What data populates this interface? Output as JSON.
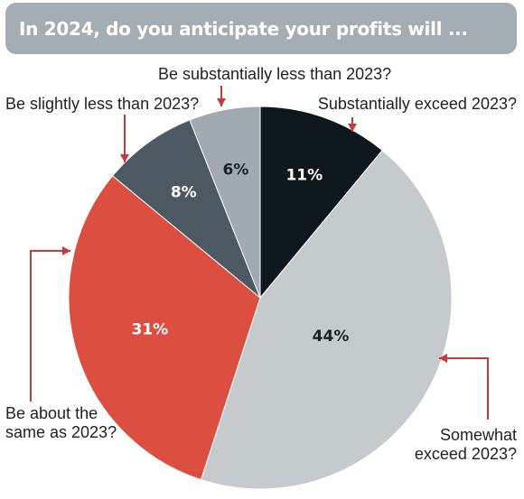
{
  "title": "In 2024, do you anticipate your profits will ...",
  "chart_data": {
    "type": "pie",
    "title": "In 2024, do you anticipate your profits will ...",
    "slices": [
      {
        "label": "Substantially exceed 2023?",
        "label_lines": [
          "Substantially exceed 2023?"
        ],
        "value": 11,
        "display": "11%",
        "color": "#0e171c",
        "text_color": "#ffffff"
      },
      {
        "label": "Somewhat exceed 2023?",
        "label_lines": [
          "Somewhat",
          "exceed 2023?"
        ],
        "value": 44,
        "display": "44%",
        "color": "#c5cacd",
        "text_color": "#1b2226"
      },
      {
        "label": "Be about the same as 2023?",
        "label_lines": [
          "Be about the",
          "same as 2023?"
        ],
        "value": 31,
        "display": "31%",
        "color": "#dc4e3f",
        "text_color": "#ffffff"
      },
      {
        "label": "Be slightly less than 2023?",
        "label_lines": [
          "Be slightly less than 2023?"
        ],
        "value": 8,
        "display": "8%",
        "color": "#4d5962",
        "text_color": "#ffffff"
      },
      {
        "label": "Be substantially less than 2023?",
        "label_lines": [
          "Be substantially less than 2023?"
        ],
        "value": 6,
        "display": "6%",
        "color": "#a1aab1",
        "text_color": "#1b2226"
      }
    ],
    "start": "top",
    "direction": "clockwise",
    "accent_color": "#c8393a"
  }
}
